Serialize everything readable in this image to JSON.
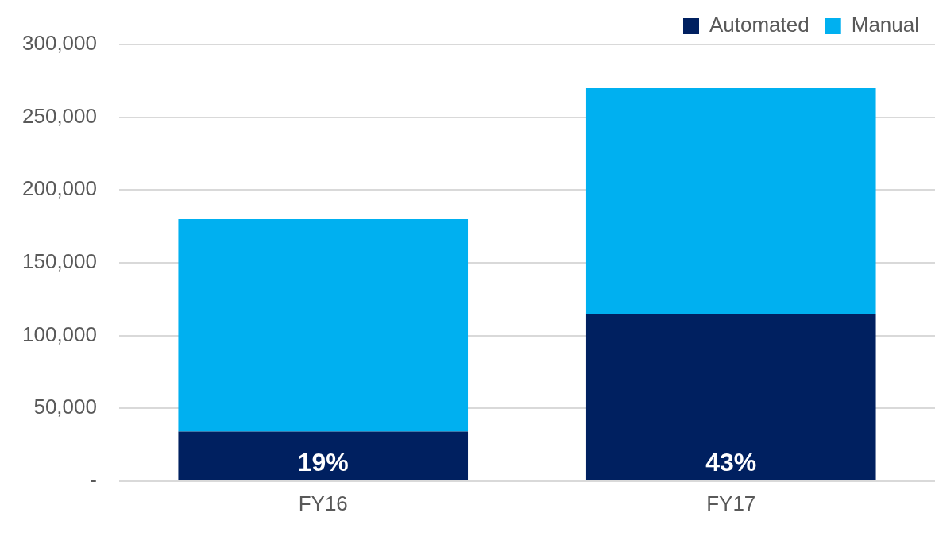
{
  "chart_data": {
    "type": "bar",
    "stacked": true,
    "categories": [
      "FY16",
      "FY17"
    ],
    "series": [
      {
        "name": "Automated",
        "color": "#002060",
        "values": [
          34000,
          115000
        ]
      },
      {
        "name": "Manual",
        "color": "#00b0f0",
        "values": [
          146000,
          155000
        ]
      }
    ],
    "ylim": [
      0,
      300000
    ],
    "yticks": [
      {
        "value": 0,
        "label": "-"
      },
      {
        "value": 50000,
        "label": "50,000"
      },
      {
        "value": 100000,
        "label": "100,000"
      },
      {
        "value": 150000,
        "label": "150,000"
      },
      {
        "value": 200000,
        "label": "200,000"
      },
      {
        "value": 250000,
        "label": "250,000"
      },
      {
        "value": 300000,
        "label": "300,000"
      }
    ],
    "annotations": [
      {
        "text": "19%",
        "x": "FY16",
        "y": 0
      },
      {
        "text": "43%",
        "x": "FY17",
        "y": 0
      }
    ],
    "grid": "y",
    "legend": "top right"
  }
}
